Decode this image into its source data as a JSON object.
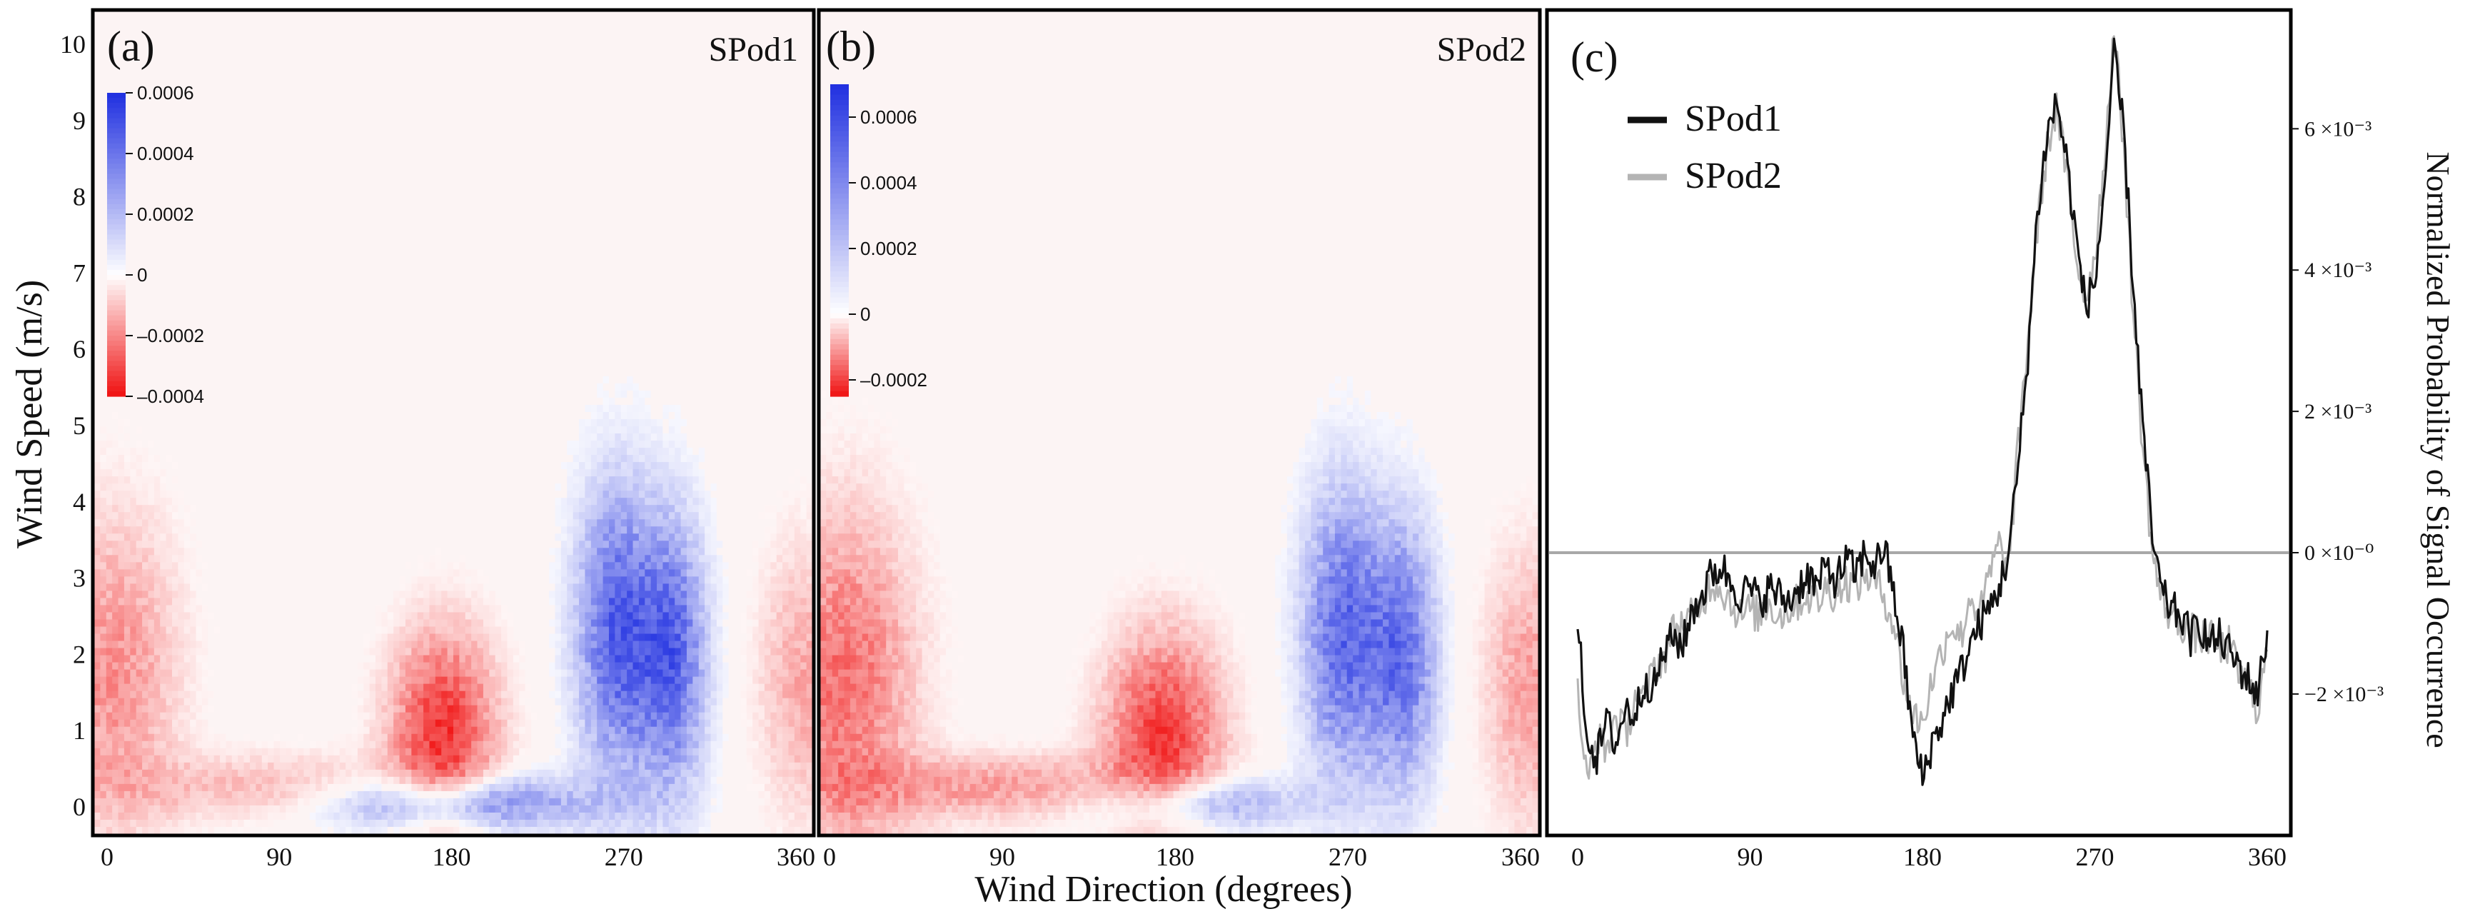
{
  "figure": {
    "shared_ylabel": "Wind Speed (m/s)",
    "shared_xlabel": "Wind Direction (degrees)"
  },
  "chart_data": [
    {
      "panel": "a",
      "type": "heatmap",
      "panel_label": "(a)",
      "title": "SPod1",
      "xlabel": "Wind Direction (degrees)",
      "ylabel": "Wind Speed (m/s)",
      "xlim": [
        0,
        360
      ],
      "ylim": [
        0,
        10
      ],
      "xticks": [
        "0",
        "90",
        "180",
        "270",
        "360"
      ],
      "yticks": [
        "0",
        "1",
        "2",
        "3",
        "4",
        "5",
        "6",
        "7",
        "8",
        "9",
        "10"
      ],
      "colorbar": {
        "min": -0.0004,
        "max": 0.0006,
        "tick_values": [
          0.0006,
          0.0004,
          0.0002,
          0,
          -0.0002,
          -0.0004
        ],
        "tick_labels": [
          "0.0006",
          "0.0004",
          "0.0002",
          "0",
          "–0.0002",
          "–0.0004"
        ],
        "pos_color": "#1f2fe0",
        "neg_color": "#f01010",
        "zero_color": "#ffffff"
      },
      "features": [
        {
          "sign": "negative",
          "dir_center": 10,
          "dir_spread": 22,
          "speed_center": 1.8,
          "speed_spread": 1.4,
          "intensity": 0.45
        },
        {
          "sign": "negative",
          "dir_center": 175,
          "dir_spread": 18,
          "speed_center": 1.0,
          "speed_spread": 0.9,
          "intensity": 0.85
        },
        {
          "sign": "positive",
          "dir_center": 262,
          "dir_spread": 14,
          "speed_center": 2.3,
          "speed_spread": 1.3,
          "intensity": 0.75
        },
        {
          "sign": "positive",
          "dir_center": 290,
          "dir_spread": 12,
          "speed_center": 2.0,
          "speed_spread": 1.2,
          "intensity": 0.7
        },
        {
          "sign": "positive",
          "dir_center": 180,
          "dir_spread": 45,
          "speed_center": 0.1,
          "speed_spread": 0.25,
          "intensity": 0.7
        },
        {
          "sign": "negative",
          "dir_center": 90,
          "dir_spread": 55,
          "speed_center": 0.3,
          "speed_spread": 0.3,
          "intensity": 0.3
        },
        {
          "sign": "negative",
          "dir_center": 355,
          "dir_spread": 15,
          "speed_center": 1.7,
          "speed_spread": 1.2,
          "intensity": 0.35
        }
      ]
    },
    {
      "panel": "b",
      "type": "heatmap",
      "panel_label": "(b)",
      "title": "SPod2",
      "xlabel": "Wind Direction (degrees)",
      "xlim": [
        0,
        360
      ],
      "ylim": [
        0,
        10
      ],
      "xticks": [
        "0",
        "90",
        "180",
        "270",
        "360"
      ],
      "colorbar": {
        "min": -0.00025,
        "max": 0.0007,
        "tick_values": [
          0.0006,
          0.0004,
          0.0002,
          0,
          -0.0002
        ],
        "tick_labels": [
          "0.0006",
          "0.0004",
          "0.0002",
          "0",
          "–0.0002"
        ],
        "pos_color": "#1f2fe0",
        "neg_color": "#f01010",
        "zero_color": "#ffffff"
      },
      "features": [
        {
          "sign": "negative",
          "dir_center": 12,
          "dir_spread": 24,
          "speed_center": 1.7,
          "speed_spread": 1.5,
          "intensity": 0.6
        },
        {
          "sign": "negative",
          "dir_center": 172,
          "dir_spread": 20,
          "speed_center": 1.0,
          "speed_spread": 0.9,
          "intensity": 0.8
        },
        {
          "sign": "positive",
          "dir_center": 262,
          "dir_spread": 14,
          "speed_center": 2.3,
          "speed_spread": 1.3,
          "intensity": 0.7
        },
        {
          "sign": "positive",
          "dir_center": 292,
          "dir_spread": 12,
          "speed_center": 2.0,
          "speed_spread": 1.2,
          "intensity": 0.65
        },
        {
          "sign": "positive",
          "dir_center": 185,
          "dir_spread": 35,
          "speed_center": 0.1,
          "speed_spread": 0.25,
          "intensity": 0.55
        },
        {
          "sign": "negative",
          "dir_center": 90,
          "dir_spread": 60,
          "speed_center": 0.3,
          "speed_spread": 0.3,
          "intensity": 0.4
        },
        {
          "sign": "negative",
          "dir_center": 355,
          "dir_spread": 15,
          "speed_center": 1.6,
          "speed_spread": 1.2,
          "intensity": 0.4
        }
      ]
    },
    {
      "panel": "c",
      "type": "line",
      "panel_label": "(c)",
      "xlabel": "Wind Direction (degrees)",
      "ylabel": "Normalized Probability of Signal Occurrence",
      "xlim": [
        0,
        360
      ],
      "ylim": [
        -3.8,
        7.6
      ],
      "y_scale_label": "×10⁻³",
      "xticks": [
        "0",
        "90",
        "180",
        "270",
        "360"
      ],
      "yticks": [
        {
          "value": 6,
          "label": "6 ×10⁻³"
        },
        {
          "value": 4,
          "label": "4 ×10⁻³"
        },
        {
          "value": 2,
          "label": "2 ×10⁻³"
        },
        {
          "value": 0,
          "label": "0 ×10⁻⁰"
        },
        {
          "value": -2,
          "label": "−2 ×10⁻³"
        }
      ],
      "zero_line": true,
      "legend": {
        "position": "top-left"
      },
      "series": [
        {
          "name": "SPod1",
          "color": "#111111",
          "x": [
            0,
            5,
            10,
            15,
            20,
            25,
            30,
            35,
            40,
            45,
            50,
            55,
            60,
            65,
            70,
            75,
            80,
            85,
            90,
            95,
            100,
            105,
            110,
            115,
            120,
            125,
            130,
            135,
            140,
            145,
            150,
            155,
            160,
            165,
            170,
            175,
            180,
            185,
            190,
            195,
            200,
            205,
            210,
            215,
            220,
            225,
            230,
            235,
            240,
            245,
            250,
            255,
            260,
            265,
            270,
            275,
            280,
            285,
            290,
            295,
            300,
            305,
            310,
            315,
            320,
            325,
            330,
            335,
            340,
            345,
            350,
            355,
            360
          ],
          "values": [
            -1.0,
            -2.6,
            -2.9,
            -2.4,
            -2.7,
            -2.2,
            -2.3,
            -1.8,
            -1.9,
            -1.4,
            -1.2,
            -1.3,
            -0.8,
            -0.6,
            -0.3,
            -0.2,
            -0.4,
            -0.6,
            -0.5,
            -0.7,
            -0.5,
            -0.6,
            -0.7,
            -0.5,
            -0.3,
            -0.5,
            -0.2,
            -0.4,
            -0.1,
            -0.3,
            0.0,
            -0.2,
            0.1,
            -0.6,
            -1.4,
            -2.6,
            -3.2,
            -2.7,
            -2.4,
            -2.0,
            -1.7,
            -1.3,
            -1.0,
            -0.8,
            -0.5,
            0.0,
            1.2,
            2.8,
            4.8,
            5.9,
            6.4,
            5.6,
            4.5,
            3.5,
            3.8,
            5.2,
            7.0,
            6.0,
            3.8,
            1.8,
            0.2,
            -0.6,
            -0.8,
            -0.9,
            -1.2,
            -1.0,
            -1.3,
            -1.2,
            -1.4,
            -1.6,
            -1.8,
            -2.0,
            -1.1
          ]
        },
        {
          "name": "SPod2",
          "color": "#b4b4b4",
          "x": [
            0,
            5,
            10,
            15,
            20,
            25,
            30,
            35,
            40,
            45,
            50,
            55,
            60,
            65,
            70,
            75,
            80,
            85,
            90,
            95,
            100,
            105,
            110,
            115,
            120,
            125,
            130,
            135,
            140,
            145,
            150,
            155,
            160,
            165,
            170,
            175,
            180,
            185,
            190,
            195,
            200,
            205,
            210,
            215,
            220,
            225,
            230,
            235,
            240,
            245,
            250,
            255,
            260,
            265,
            270,
            275,
            280,
            285,
            290,
            295,
            300,
            305,
            310,
            315,
            320,
            325,
            330,
            335,
            340,
            345,
            350,
            355,
            360
          ],
          "values": [
            -2.0,
            -3.3,
            -2.6,
            -2.8,
            -2.3,
            -2.6,
            -2.0,
            -2.1,
            -1.6,
            -1.5,
            -1.1,
            -1.0,
            -0.9,
            -0.7,
            -0.4,
            -0.5,
            -0.7,
            -0.9,
            -0.8,
            -0.9,
            -0.7,
            -0.9,
            -0.8,
            -0.7,
            -0.6,
            -0.7,
            -0.5,
            -0.6,
            -0.4,
            -0.5,
            -0.3,
            -0.4,
            -0.6,
            -1.0,
            -1.8,
            -2.3,
            -2.4,
            -1.8,
            -1.4,
            -1.0,
            -1.2,
            -0.6,
            -0.9,
            -0.3,
            0.1,
            -0.2,
            1.5,
            3.0,
            4.6,
            5.7,
            6.3,
            5.4,
            4.2,
            3.6,
            4.2,
            5.6,
            7.4,
            5.8,
            3.4,
            1.5,
            0.0,
            -0.7,
            -0.9,
            -1.0,
            -1.1,
            -1.2,
            -1.2,
            -1.4,
            -1.3,
            -1.7,
            -1.9,
            -2.2,
            -1.4
          ]
        }
      ]
    }
  ]
}
